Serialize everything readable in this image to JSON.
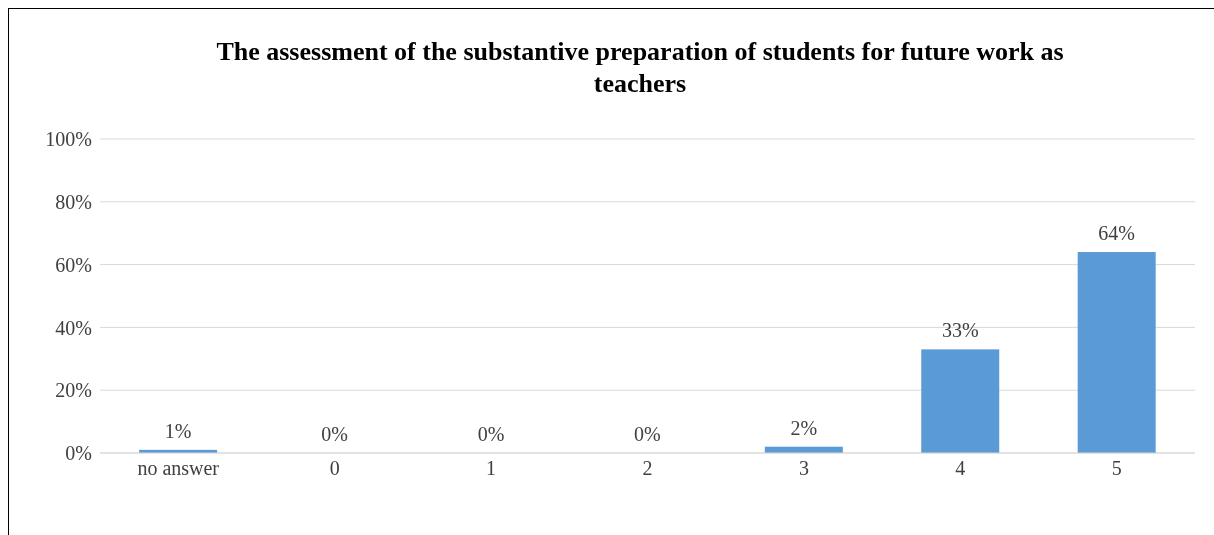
{
  "chart_data": {
    "type": "bar",
    "title": "The assessment of the substantive preparation of students for future work as teachers",
    "categories": [
      "no answer",
      "0",
      "1",
      "2",
      "3",
      "4",
      "5"
    ],
    "values": [
      1,
      0,
      0,
      0,
      2,
      33,
      64
    ],
    "value_labels": [
      "1%",
      "0%",
      "0%",
      "0%",
      "2%",
      "33%",
      "64%"
    ],
    "color": "#5b9bd5",
    "ylim": [
      0,
      100
    ],
    "yticks": [
      {
        "value": 0,
        "label": "0%"
      },
      {
        "value": 20,
        "label": "20%"
      },
      {
        "value": 40,
        "label": "40%"
      },
      {
        "value": 60,
        "label": "60%"
      },
      {
        "value": 80,
        "label": "80%"
      },
      {
        "value": 100,
        "label": "100%"
      }
    ],
    "grid": "y"
  }
}
